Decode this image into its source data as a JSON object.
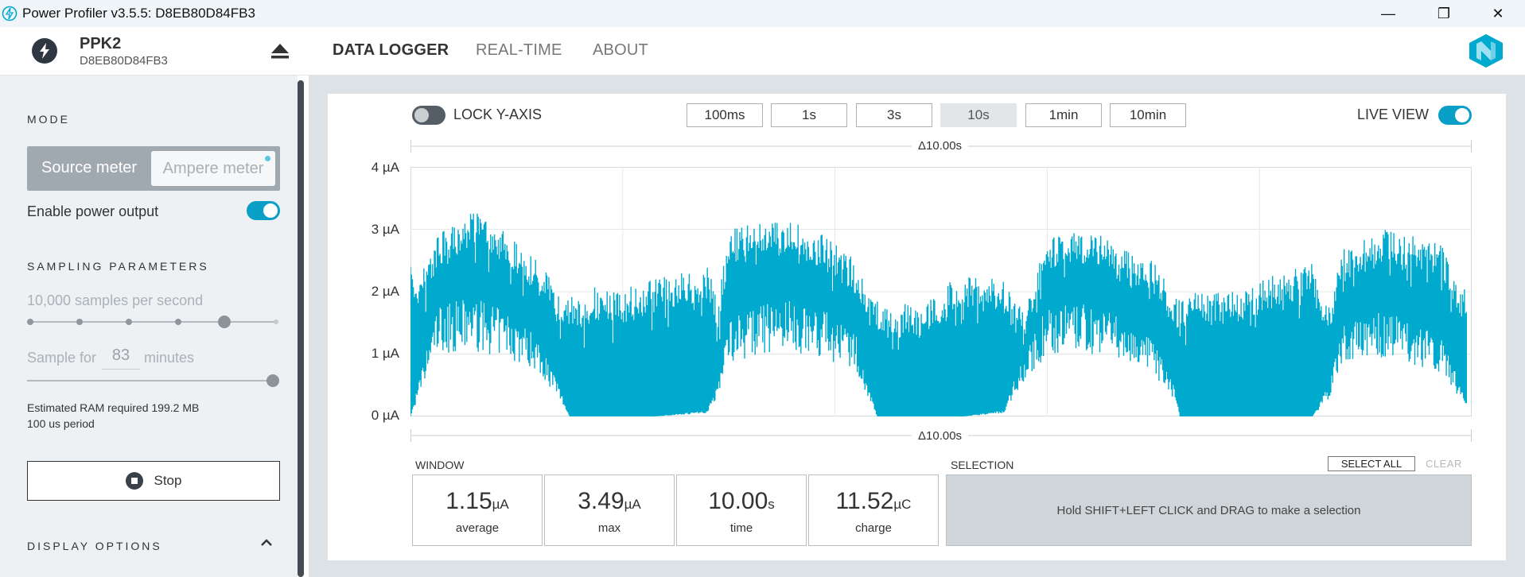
{
  "window": {
    "title": "Power Profiler v3.5.5: D8EB80D84FB3",
    "minimize_glyph": "—",
    "maximize_glyph": "❐",
    "close_glyph": "✕"
  },
  "header": {
    "device_name": "PPK2",
    "device_serial": "D8EB80D84FB3",
    "tabs": [
      {
        "label": "DATA LOGGER",
        "active": true
      },
      {
        "label": "REAL-TIME",
        "active": false
      },
      {
        "label": "ABOUT",
        "active": false
      }
    ]
  },
  "sidebar": {
    "mode_title": "MODE",
    "mode_source": "Source meter",
    "mode_ampere": "Ampere meter",
    "enable_power_label": "Enable power output",
    "enable_power_on": true,
    "sampling_title": "SAMPLING PARAMETERS",
    "samples_label": "10,000 samples per second",
    "sample_for_prefix": "Sample for",
    "sample_for_value": "83",
    "sample_for_suffix": "minutes",
    "ram_text": "Estimated RAM required 199.2 MB",
    "period_text": "100 us period",
    "stop_label": "Stop",
    "display_options_title": "DISPLAY OPTIONS"
  },
  "toolbar": {
    "lock_y_axis_label": "LOCK Y-AXIS",
    "lock_y_axis_on": false,
    "time_windows": [
      "100ms",
      "1s",
      "3s",
      "10s",
      "1min",
      "10min"
    ],
    "selected_window": "10s",
    "live_view_label": "LIVE VIEW",
    "live_view_on": true
  },
  "chart_data": {
    "type": "area",
    "title": "",
    "duration_top": "Δ10.00s",
    "duration_bottom": "Δ10.00s",
    "y_ticks": [
      "4 µA",
      "3 µA",
      "2 µA",
      "1 µA",
      "0 µA"
    ],
    "ylim": [
      0,
      4
    ],
    "xlim": [
      0,
      10
    ],
    "unit": "µA",
    "color": "#00a9ce",
    "x": [
      0.0,
      0.1,
      0.25,
      0.6,
      0.9,
      1.2,
      1.4,
      1.5,
      1.6,
      1.75,
      1.9,
      2.3,
      2.8,
      2.9,
      3.0,
      3.5,
      3.9,
      4.2,
      4.3,
      4.4,
      4.5,
      4.8,
      5.2,
      5.6,
      5.7,
      5.8,
      6.0,
      6.4,
      6.7,
      7.0,
      7.2,
      7.25,
      7.35,
      7.7,
      8.2,
      8.5,
      8.65,
      8.8,
      9.2,
      9.7,
      9.95
    ],
    "envelope_max": [
      2.4,
      2.3,
      2.9,
      3.3,
      3.0,
      2.5,
      2.0,
      2.0,
      1.9,
      2.1,
      2.0,
      2.2,
      2.4,
      1.9,
      3.0,
      3.2,
      2.9,
      2.5,
      2.0,
      1.9,
      1.8,
      1.8,
      2.3,
      2.2,
      1.8,
      1.9,
      2.9,
      3.0,
      2.7,
      2.5,
      2.0,
      1.9,
      2.0,
      2.0,
      2.3,
      2.5,
      1.8,
      2.7,
      3.0,
      2.8,
      2.0
    ],
    "envelope_min": [
      0.0,
      0.7,
      1.8,
      1.9,
      1.7,
      1.3,
      0.5,
      0.0,
      0.0,
      0.0,
      0.0,
      0.0,
      0.1,
      0.6,
      1.6,
      1.9,
      1.7,
      1.3,
      0.6,
      0.0,
      0.0,
      0.0,
      0.0,
      0.1,
      0.7,
      1.0,
      1.8,
      1.8,
      1.6,
      1.2,
      0.5,
      0.0,
      0.0,
      0.0,
      0.0,
      0.0,
      0.5,
      1.5,
      1.7,
      1.3,
      0.3
    ]
  },
  "window_stats": {
    "title": "WINDOW",
    "average": {
      "value": "1.15",
      "unit": "µA",
      "label": "average"
    },
    "max": {
      "value": "3.49",
      "unit": "µA",
      "label": "max"
    },
    "time": {
      "value": "10.00",
      "unit": "s",
      "label": "time"
    },
    "charge": {
      "value": "11.52",
      "unit": "µC",
      "label": "charge"
    }
  },
  "selection": {
    "title": "SELECTION",
    "select_all_label": "SELECT ALL",
    "clear_label": "CLEAR",
    "hint": "Hold SHIFT+LEFT CLICK and DRAG to make a selection"
  }
}
